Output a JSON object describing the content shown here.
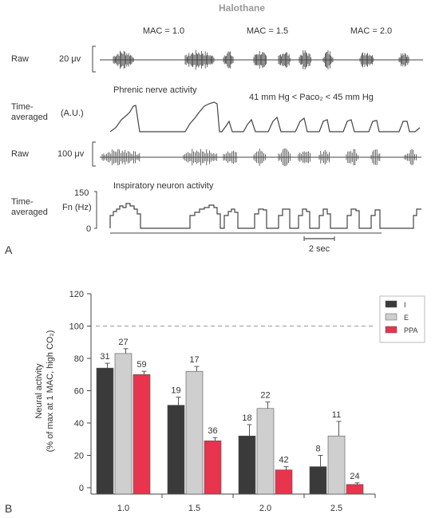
{
  "panel_a": {
    "panel_label": "A",
    "title": "Halothane",
    "mac_labels": [
      "MAC = 1.0",
      "MAC = 1.5",
      "MAC = 2.0"
    ],
    "rows": [
      {
        "label": "Raw",
        "unit": "20 μv"
      },
      {
        "label": "Time-\naveraged",
        "unit": "(A.U.)"
      },
      {
        "label": "Raw",
        "unit": "100 μv"
      },
      {
        "label": "Time-\naveraged",
        "unit": "Fn (Hz)"
      }
    ],
    "phrenic_title": "Phrenic nerve activity",
    "inspiratory_title": "Inspiratory neuron activity",
    "paco2_text": "41 mm Hg < Paco₂ < 45 mm Hg",
    "fn_ticks": [
      "150",
      "0"
    ],
    "scale_bar": "2 sec",
    "colors": {
      "trace": "#444444"
    }
  },
  "chart_data": {
    "type": "bar",
    "panel_label": "B",
    "categories": [
      "1.0",
      "1.5",
      "2.0",
      "2.5"
    ],
    "ylabel_line1": "Neural activity",
    "ylabel_line2": "(% of max at 1 MAC, high CO₂)",
    "ylim": [
      0,
      120
    ],
    "yticks": [
      0,
      20,
      40,
      60,
      80,
      100,
      120
    ],
    "reference_line": 100,
    "legend_position": "top-right",
    "series": [
      {
        "name": "I",
        "color": "#3a3a3a",
        "values": [
          74,
          51,
          32,
          13
        ],
        "errors": [
          3,
          5,
          7,
          7
        ],
        "labels": [
          "31",
          "19",
          "18",
          "8"
        ]
      },
      {
        "name": "E",
        "color": "#cfcfcf",
        "values": [
          83,
          72,
          49,
          32
        ],
        "errors": [
          3,
          3,
          4,
          9
        ],
        "labels": [
          "27",
          "17",
          "22",
          "11"
        ]
      },
      {
        "name": "PPA",
        "color": "#e8344d",
        "values": [
          70,
          29,
          11,
          2
        ],
        "errors": [
          2,
          2,
          2,
          1
        ],
        "labels": [
          "59",
          "36",
          "42",
          "24"
        ]
      }
    ]
  }
}
